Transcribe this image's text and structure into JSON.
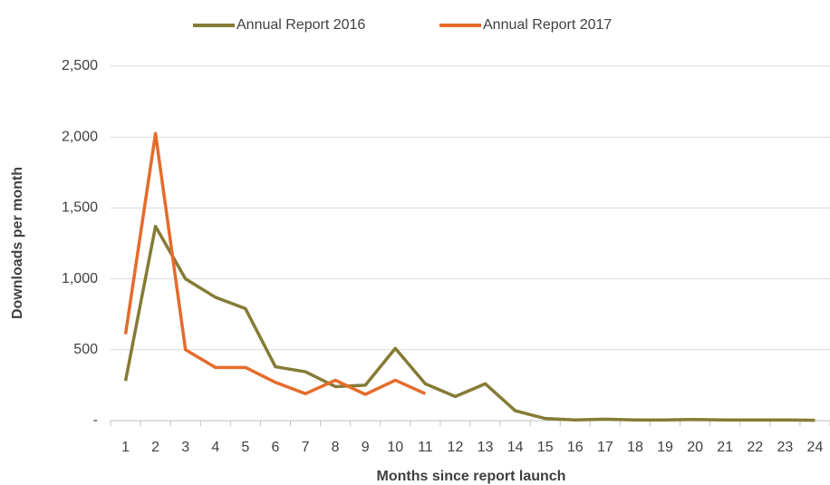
{
  "chart_data": {
    "type": "line",
    "x_label": "Months since report launch",
    "y_label": "Downloads per month",
    "categories": [
      1,
      2,
      3,
      4,
      5,
      6,
      7,
      8,
      9,
      10,
      11,
      12,
      13,
      14,
      15,
      16,
      17,
      18,
      19,
      20,
      21,
      22,
      23,
      24
    ],
    "series": [
      {
        "name": "Annual Report 2016",
        "color": "#857b35",
        "values": [
          280,
          1370,
          1000,
          870,
          790,
          380,
          345,
          240,
          250,
          510,
          260,
          170,
          260,
          70,
          15,
          5,
          10,
          5,
          5,
          8,
          5,
          5,
          5,
          2
        ]
      },
      {
        "name": "Annual Report 2017",
        "color": "#e56b2b",
        "values": [
          610,
          2025,
          500,
          375,
          375,
          270,
          190,
          285,
          185,
          285,
          190,
          null,
          null,
          null,
          null,
          null,
          null,
          null,
          null,
          null,
          null,
          null,
          null,
          null
        ]
      }
    ],
    "ylim": [
      0,
      2500
    ],
    "yticks": [
      {
        "value": 0,
        "label": "-"
      },
      500,
      {
        "value": 1000,
        "label": "1,000"
      },
      {
        "value": 1500,
        "label": "1,500"
      },
      {
        "value": 2000,
        "label": "2,000"
      },
      {
        "value": 2500,
        "label": "2,500"
      }
    ],
    "grid": true,
    "legend": "top"
  }
}
